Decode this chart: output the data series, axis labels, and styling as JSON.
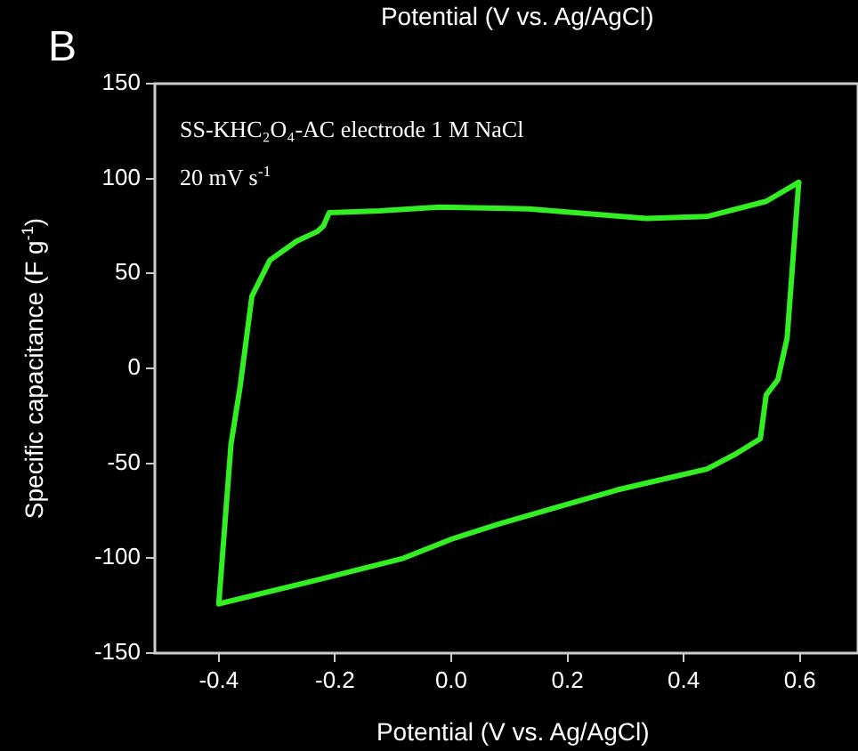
{
  "chart_data": {
    "type": "line",
    "title": "B",
    "xlabel": "Potential (V vs. Ag/AgCl)",
    "ylabel": "Specific capacitance (F g$^{-1}$)",
    "annotations": [
      "Potential (V vs. Ag/AgCl)",
      "SS-KHC₂O₄-AC electrode 1 M NaCl",
      "20 mV s$^{-1}$"
    ],
    "series": [
      {
        "color": "#33ee22",
        "x": [
          -0.4,
          -0.379,
          -0.363,
          -0.343,
          -0.312,
          -0.266,
          -0.231,
          -0.22,
          -0.21,
          -0.124,
          -0.02,
          0.133,
          0.336,
          0.44,
          0.542,
          0.598
        ],
        "values": [
          -124,
          -40,
          -9,
          38,
          57,
          67,
          72,
          75,
          82,
          83,
          85,
          84,
          79,
          80,
          88,
          98
        ]
      },
      {
        "color": "#33ee22",
        "x": [
          -0.4,
          -0.225,
          -0.082,
          0,
          0.082,
          0.184,
          0.286,
          0.44,
          0.49,
          0.532,
          0.542,
          0.562,
          0.578,
          0.598
        ],
        "values": [
          -124,
          -111,
          -100,
          -90,
          -82,
          -73,
          -64,
          -53,
          -45,
          -37,
          -14,
          -6,
          16,
          98
        ]
      }
    ],
    "xlim": [
      -0.51,
      0.7
    ],
    "ylim": [
      -150,
      150
    ],
    "xticks": [
      -0.4,
      -0.2,
      {
        "value": 0,
        "label": "0.0"
      },
      0.2,
      0.4,
      0.6
    ],
    "yticks": [
      -150,
      -100,
      -50,
      0,
      50,
      100,
      150
    ],
    "grid": false,
    "legend": false,
    "marker": "none",
    "line_style": "solid"
  }
}
